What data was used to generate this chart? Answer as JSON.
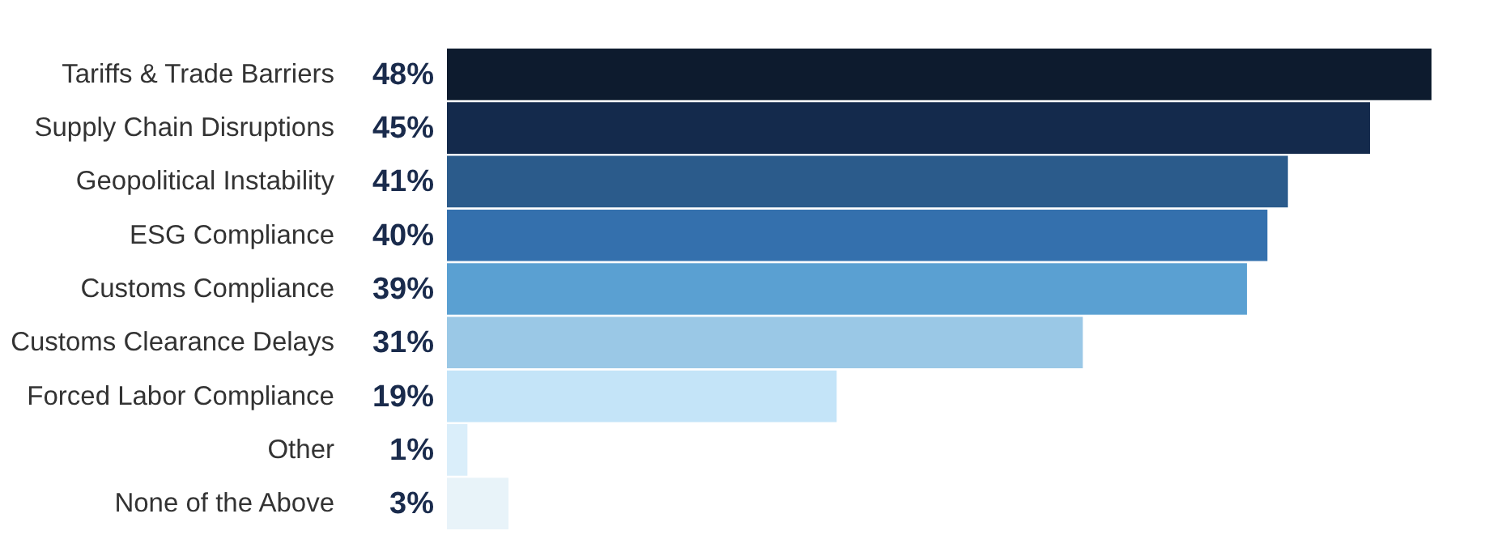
{
  "chart_data": {
    "type": "bar",
    "orientation": "horizontal",
    "categories": [
      "Tariffs & Trade Barriers",
      "Supply Chain Disruptions",
      "Geopolitical Instability",
      "ESG Compliance",
      "Customs Compliance",
      "Customs Clearance Delays",
      "Forced Labor Compliance",
      "Other",
      "None of the Above"
    ],
    "values": [
      48,
      45,
      41,
      40,
      39,
      31,
      19,
      1,
      3
    ],
    "value_labels": [
      "48%",
      "45%",
      "41%",
      "40%",
      "39%",
      "31%",
      "19%",
      "1%",
      "3%"
    ],
    "colors": [
      "#0d1b2e",
      "#142a4c",
      "#2b5b8b",
      "#3470ad",
      "#5aa0d2",
      "#9ac8e6",
      "#c4e4f8",
      "#daeefa",
      "#e8f3f9"
    ],
    "xlim": [
      0,
      48
    ],
    "tick_labels": "y",
    "grid": false
  }
}
